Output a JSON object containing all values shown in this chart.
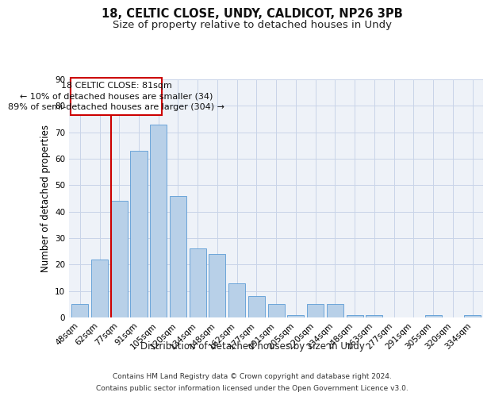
{
  "title1": "18, CELTIC CLOSE, UNDY, CALDICOT, NP26 3PB",
  "title2": "Size of property relative to detached houses in Undy",
  "xlabel": "Distribution of detached houses by size in Undy",
  "ylabel": "Number of detached properties",
  "categories": [
    "48sqm",
    "62sqm",
    "77sqm",
    "91sqm",
    "105sqm",
    "120sqm",
    "134sqm",
    "148sqm",
    "162sqm",
    "177sqm",
    "191sqm",
    "205sqm",
    "220sqm",
    "234sqm",
    "248sqm",
    "263sqm",
    "277sqm",
    "291sqm",
    "305sqm",
    "320sqm",
    "334sqm"
  ],
  "values": [
    5,
    22,
    44,
    63,
    73,
    46,
    26,
    24,
    13,
    8,
    5,
    1,
    5,
    5,
    1,
    1,
    0,
    0,
    1,
    0,
    1
  ],
  "bar_color": "#b8d0e8",
  "bar_edge_color": "#5b9bd5",
  "vline_x_index": 2,
  "vline_color": "#cc0000",
  "annotation_line1": "18 CELTIC CLOSE: 81sqm",
  "annotation_line2": "← 10% of detached houses are smaller (34)",
  "annotation_line3": "89% of semi-detached houses are larger (304) →",
  "annotation_box_color": "#cc0000",
  "ylim": [
    0,
    90
  ],
  "yticks": [
    0,
    10,
    20,
    30,
    40,
    50,
    60,
    70,
    80,
    90
  ],
  "grid_color": "#c8d4e8",
  "background_color": "#eef2f8",
  "footer_line1": "Contains HM Land Registry data © Crown copyright and database right 2024.",
  "footer_line2": "Contains public sector information licensed under the Open Government Licence v3.0.",
  "title1_fontsize": 10.5,
  "title2_fontsize": 9.5,
  "xlabel_fontsize": 8.5,
  "ylabel_fontsize": 8.5,
  "tick_fontsize": 7.5,
  "annotation_fontsize": 8,
  "footer_fontsize": 6.5
}
